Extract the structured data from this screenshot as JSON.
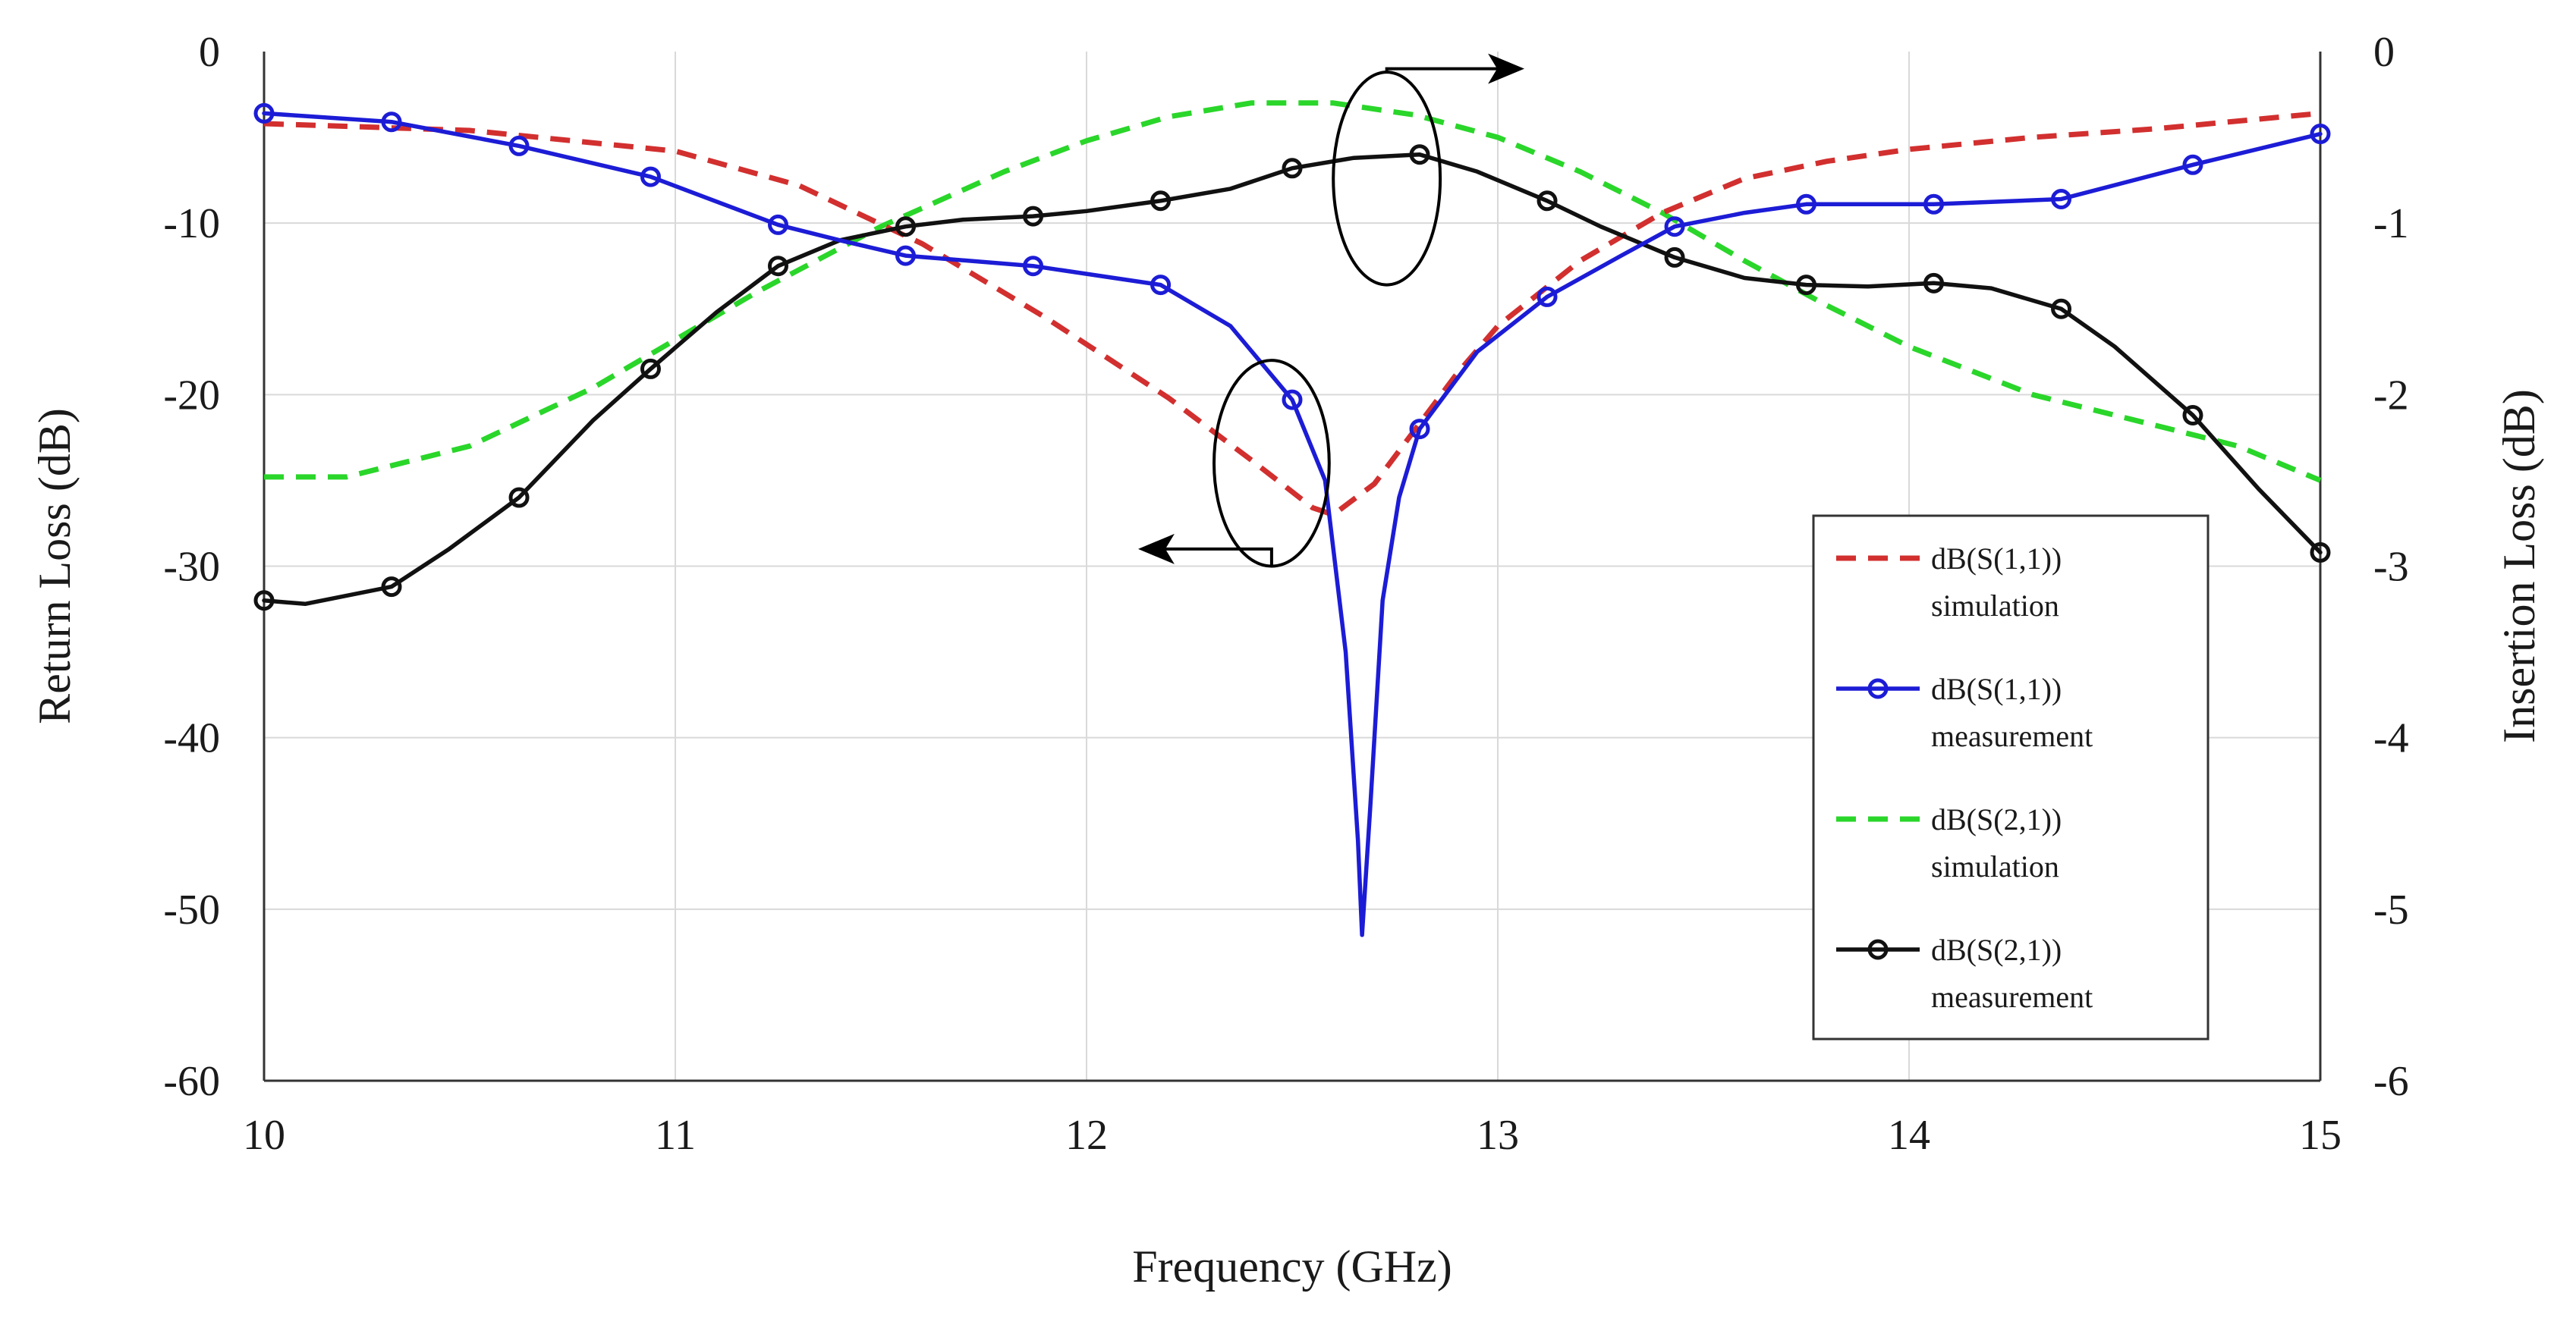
{
  "chart_data": {
    "type": "line",
    "title": "",
    "xlabel": "Frequency (GHz)",
    "ylabel": "Return Loss (dB)",
    "y2label": "Insertion Loss (dB)",
    "xlim": [
      10,
      15
    ],
    "ylim": [
      -60,
      0
    ],
    "y2lim": [
      -6,
      0
    ],
    "grid": true,
    "x_ticks": [
      "10",
      "11",
      "12",
      "13",
      "14",
      "15"
    ],
    "y_ticks": [
      "0",
      "-10",
      "-20",
      "-30",
      "-40",
      "-50",
      "-60"
    ],
    "y2_ticks": [
      "0",
      "-1",
      "-2",
      "-3",
      "-4",
      "-5",
      "-6"
    ],
    "legend_position": "bottom-right",
    "series": [
      {
        "name_line1": "dB(S(1,1))",
        "name_line2": "simulation",
        "axis": "left",
        "color": "#d22f2f",
        "style": "dashed",
        "markers": false,
        "x": [
          10,
          10.5,
          11,
          11.3,
          11.6,
          11.9,
          12.2,
          12.4,
          12.55,
          12.6,
          12.7,
          12.8,
          12.9,
          13.0,
          13.2,
          13.4,
          13.6,
          13.8,
          14.0,
          14.3,
          14.6,
          15.0
        ],
        "y": [
          -4.2,
          -4.6,
          -5.8,
          -7.8,
          -11.2,
          -15.5,
          -20.2,
          -23.8,
          -26.6,
          -27.0,
          -25.2,
          -22.0,
          -18.8,
          -16.0,
          -12.2,
          -9.4,
          -7.4,
          -6.4,
          -5.7,
          -5.0,
          -4.5,
          -3.6
        ]
      },
      {
        "name_line1": "dB(S(1,1))",
        "name_line2": "measurement",
        "axis": "left",
        "color": "#1c1cd6",
        "style": "solid",
        "markers": true,
        "x": [
          10,
          10.31,
          10.62,
          10.94,
          11.25,
          11.4,
          11.56,
          11.87,
          12.18,
          12.35,
          12.5,
          12.58,
          12.63,
          12.66,
          12.67,
          12.69,
          12.72,
          12.76,
          12.81,
          12.95,
          13.12,
          13.3,
          13.43,
          13.6,
          13.75,
          14.06,
          14.37,
          14.69,
          15.0
        ],
        "y": [
          -3.6,
          -4.1,
          -5.5,
          -7.3,
          -10.1,
          -11.0,
          -11.9,
          -12.5,
          -13.6,
          -16.0,
          -20.3,
          -25.0,
          -35.0,
          -46.0,
          -51.5,
          -44.0,
          -32.0,
          -26.0,
          -22.0,
          -17.5,
          -14.3,
          -11.9,
          -10.2,
          -9.4,
          -8.9,
          -8.9,
          -8.6,
          -6.6,
          -4.8
        ],
        "marker_x": [
          10,
          10.31,
          10.62,
          10.94,
          11.25,
          11.56,
          11.87,
          12.18,
          12.5,
          12.81,
          13.12,
          13.43,
          13.75,
          14.06,
          14.37,
          14.69,
          15.0
        ],
        "marker_y": [
          -3.6,
          -4.1,
          -5.5,
          -7.3,
          -10.1,
          -11.9,
          -12.5,
          -13.6,
          -20.3,
          -22.0,
          -14.3,
          -10.2,
          -8.9,
          -8.9,
          -8.6,
          -6.6,
          -4.8
        ]
      },
      {
        "name_line1": "dB(S(2,1))",
        "name_line2": "simulation",
        "axis": "right",
        "color": "#2ad62a",
        "style": "dashed",
        "markers": false,
        "x": [
          10,
          10.2,
          10.5,
          10.8,
          11.0,
          11.2,
          11.5,
          11.8,
          12.0,
          12.2,
          12.4,
          12.6,
          12.8,
          13.0,
          13.2,
          13.4,
          13.6,
          13.8,
          14.0,
          14.3,
          14.6,
          14.8,
          15.0
        ],
        "y": [
          -2.48,
          -2.48,
          -2.3,
          -1.96,
          -1.68,
          -1.4,
          -1.02,
          -0.7,
          -0.52,
          -0.38,
          -0.3,
          -0.3,
          -0.37,
          -0.5,
          -0.7,
          -0.94,
          -1.22,
          -1.48,
          -1.72,
          -2.0,
          -2.18,
          -2.3,
          -2.5
        ]
      },
      {
        "name_line1": "dB(S(2,1))",
        "name_line2": "measurement",
        "axis": "right",
        "color": "#111111",
        "style": "solid",
        "markers": true,
        "x": [
          10,
          10.1,
          10.31,
          10.45,
          10.62,
          10.8,
          10.94,
          11.1,
          11.25,
          11.4,
          11.56,
          11.7,
          11.87,
          12.0,
          12.18,
          12.35,
          12.5,
          12.65,
          12.81,
          12.95,
          13.12,
          13.25,
          13.43,
          13.6,
          13.75,
          13.9,
          14.06,
          14.2,
          14.37,
          14.5,
          14.69,
          14.85,
          15.0
        ],
        "y": [
          -3.2,
          -3.22,
          -3.12,
          -2.9,
          -2.6,
          -2.15,
          -1.85,
          -1.52,
          -1.25,
          -1.1,
          -1.02,
          -0.98,
          -0.96,
          -0.93,
          -0.87,
          -0.8,
          -0.68,
          -0.62,
          -0.6,
          -0.7,
          -0.87,
          -1.02,
          -1.2,
          -1.32,
          -1.36,
          -1.37,
          -1.35,
          -1.38,
          -1.5,
          -1.72,
          -2.12,
          -2.55,
          -2.92
        ],
        "marker_x": [
          10,
          10.31,
          10.62,
          10.94,
          11.25,
          11.56,
          11.87,
          12.18,
          12.5,
          12.81,
          13.12,
          13.43,
          13.75,
          14.06,
          14.37,
          14.69,
          15.0
        ],
        "marker_y": [
          -3.2,
          -3.12,
          -2.6,
          -1.85,
          -1.25,
          -1.02,
          -0.96,
          -0.87,
          -0.68,
          -0.6,
          -0.87,
          -1.2,
          -1.36,
          -1.35,
          -1.5,
          -2.12,
          -2.92
        ]
      }
    ],
    "annotations": [
      {
        "name": "ellipse-return-loss",
        "cx": 12.45,
        "cy": -24,
        "rx": 0.14,
        "ry": 6.0,
        "arrow_to_x": 12.14,
        "arrow_to_y": -29,
        "axis": "left"
      },
      {
        "name": "ellipse-insertion-loss",
        "cx": 12.73,
        "cy": -0.74,
        "rx": 0.13,
        "ry": 0.62,
        "arrow_to_x": 13.05,
        "arrow_to_y": -0.1,
        "axis": "right"
      }
    ]
  }
}
